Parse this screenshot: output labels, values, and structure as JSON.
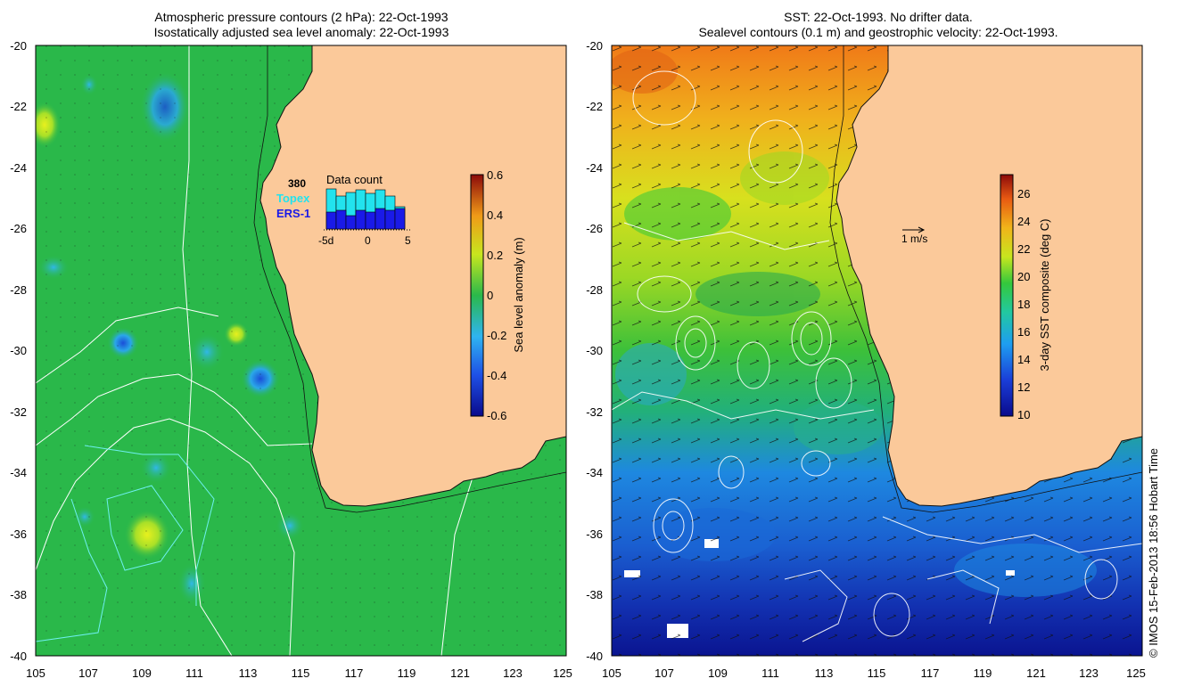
{
  "left_panel": {
    "title_line1": "Atmospheric pressure contours (2 hPa): 22-Oct-1993",
    "title_line2": "Isostatically adjusted sea level anomaly: 22-Oct-1993",
    "colorbar": {
      "label": "Sea level anomaly (m)",
      "ticks": [
        "0.6",
        "0.4",
        "0.2",
        "0",
        "-0.2",
        "-0.4",
        "-0.6"
      ],
      "range": [
        -0.6,
        0.6
      ]
    },
    "data_count": {
      "title": "Data count",
      "max_label": "380",
      "topex_label": "Topex",
      "ers_label": "ERS-1",
      "axis_ticks": [
        "-5d",
        "0",
        "5"
      ],
      "topex_color": "#22e3ee",
      "ers_color": "#1a1ae8"
    }
  },
  "right_panel": {
    "title_line1": "SST: 22-Oct-1993. No drifter data.",
    "title_line2": "Sealevel contours (0.1 m) and geostrophic velocity: 22-Oct-1993.",
    "velocity_scale_label": "1 m/s",
    "colorbar": {
      "label": "3-day SST composite (deg C)",
      "ticks": [
        "26",
        "24",
        "22",
        "20",
        "18",
        "16",
        "14",
        "12",
        "10"
      ],
      "range": [
        10,
        27.5
      ]
    }
  },
  "axes": {
    "x_ticks": [
      "105",
      "107",
      "109",
      "111",
      "113",
      "115",
      "117",
      "119",
      "121",
      "123",
      "125"
    ],
    "y_ticks": [
      "-20",
      "-22",
      "-24",
      "-26",
      "-28",
      "-30",
      "-32",
      "-34",
      "-36",
      "-38",
      "-40"
    ],
    "lon_range": [
      105,
      125
    ],
    "lat_range": [
      -40,
      -20
    ]
  },
  "credit": "© IMOS 15-Feb-2013 18:56 Hobart Time",
  "colors": {
    "land": "#fbc99a",
    "ocean_green": "#2ab84a"
  }
}
